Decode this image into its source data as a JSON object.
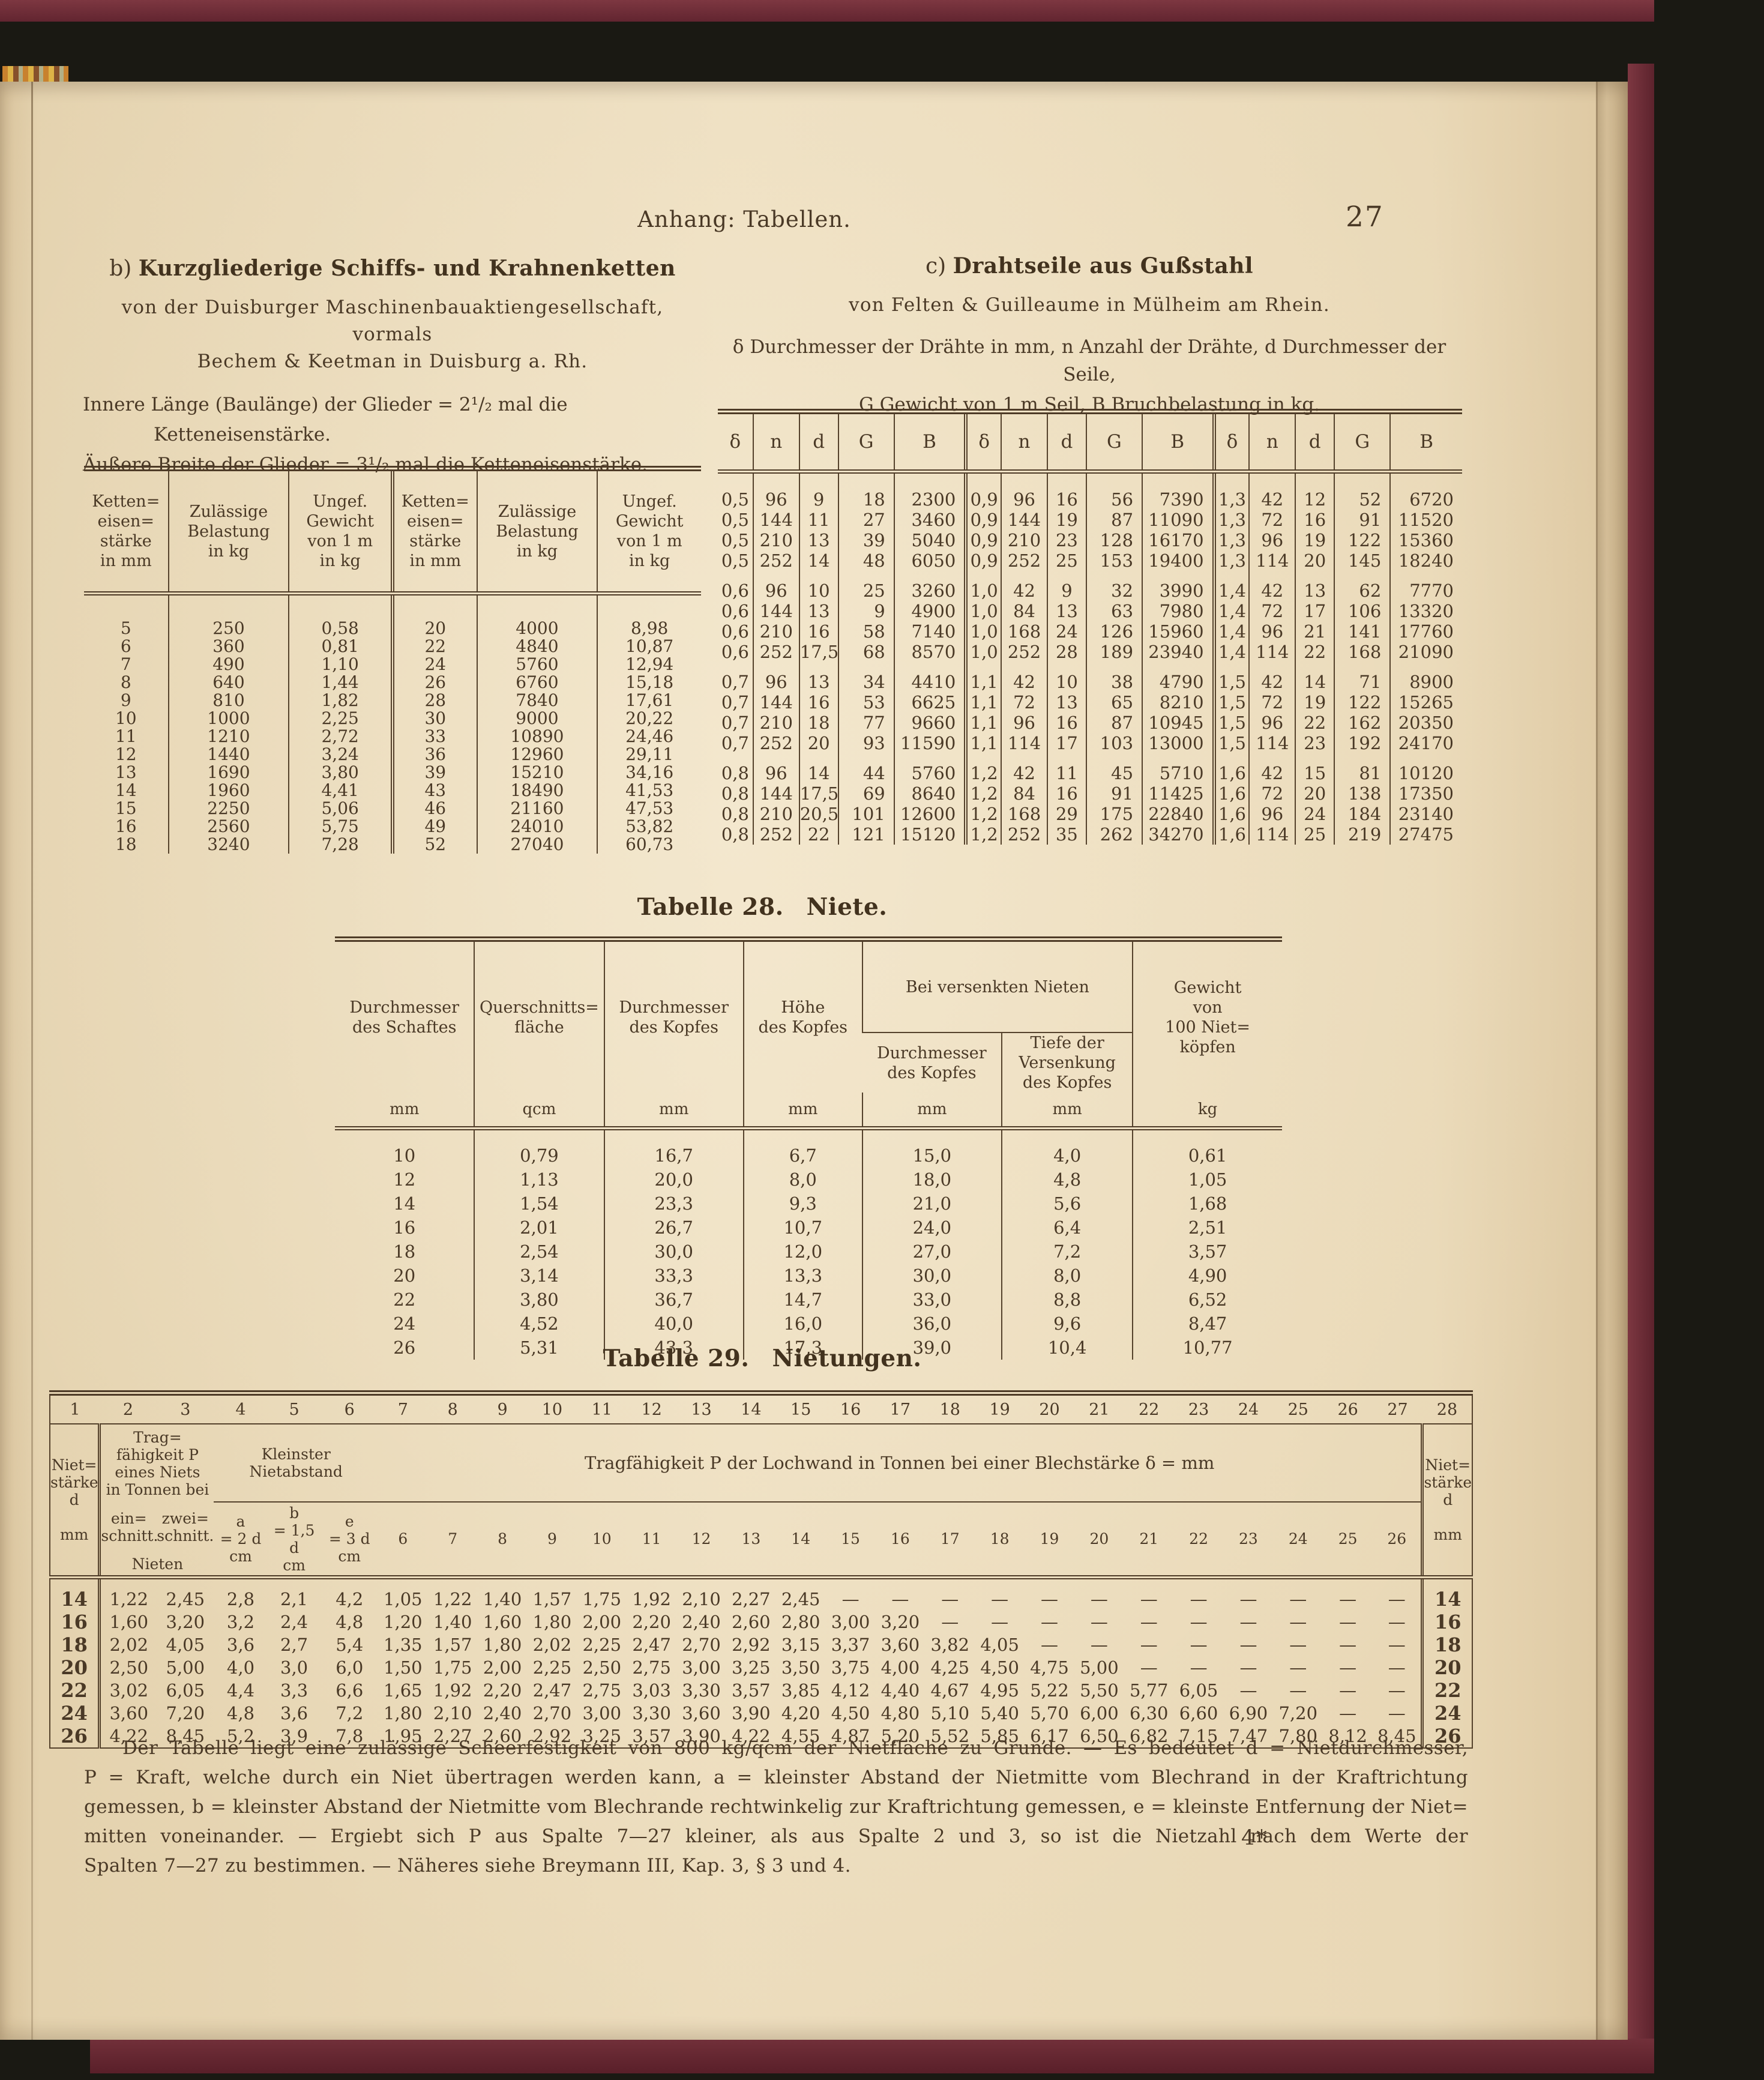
{
  "page": {
    "running_head": "Anhang: Tabellen.",
    "page_number": "27",
    "signature_mark": "4*"
  },
  "section_b": {
    "label": "b)",
    "title": "Kurzgliederige Schiffs- und Krahnenketten",
    "subtitle1": "von der Duisburger Maschinenbauaktiengesellschaft, vormals",
    "subtitle2": "Bechem & Keetman in Duisburg a. Rh.",
    "note1a": "Innere Länge (Baulänge) der Glieder = 2¹/₂ mal die",
    "note1b": "Ketteneisenstärke.",
    "note2": "Äußere Breite der Glieder = 3¹/₂ mal die Ketteneisenstärke.",
    "table": {
      "col_headers": {
        "strength": "Ketten=\neisen=\nstärke\nin mm",
        "load": "Zulässige\nBelastung\nin kg",
        "weight": "Ungef.\nGewicht\nvon 1 m\nin kg"
      },
      "rows": [
        [
          "5",
          "250",
          "0,58",
          "20",
          "4000",
          "8,98"
        ],
        [
          "6",
          "360",
          "0,81",
          "22",
          "4840",
          "10,87"
        ],
        [
          "7",
          "490",
          "1,10",
          "24",
          "5760",
          "12,94"
        ],
        [
          "8",
          "640",
          "1,44",
          "26",
          "6760",
          "15,18"
        ],
        [
          "9",
          "810",
          "1,82",
          "28",
          "7840",
          "17,61"
        ],
        [
          "10",
          "1000",
          "2,25",
          "30",
          "9000",
          "20,22"
        ],
        [
          "11",
          "1210",
          "2,72",
          "33",
          "10890",
          "24,46"
        ],
        [
          "12",
          "1440",
          "3,24",
          "36",
          "12960",
          "29,11"
        ],
        [
          "13",
          "1690",
          "3,80",
          "39",
          "15210",
          "34,16"
        ],
        [
          "14",
          "1960",
          "4,41",
          "43",
          "18490",
          "41,53"
        ],
        [
          "15",
          "2250",
          "5,06",
          "46",
          "21160",
          "47,53"
        ],
        [
          "16",
          "2560",
          "5,75",
          "49",
          "24010",
          "53,82"
        ],
        [
          "18",
          "3240",
          "7,28",
          "52",
          "27040",
          "60,73"
        ]
      ]
    }
  },
  "section_c": {
    "label": "c)",
    "title": "Drahtseile aus Gußstahl",
    "subtitle": "von Felten & Guilleaume in Mülheim am Rhein.",
    "note1": "δ Durchmesser der Drähte in mm, n Anzahl der Drähte, d Durchmesser der Seile,",
    "note2": "G Gewicht von 1 m Seil, B Bruchbelastung in kg.",
    "header_cells": [
      "δ",
      "n",
      "d",
      "G",
      "B",
      "δ",
      "n",
      "d",
      "G",
      "B",
      "δ",
      "n",
      "d",
      "G",
      "B"
    ],
    "rows": [
      [
        "0,5",
        "96",
        "9",
        "18",
        "2300",
        "0,9",
        "96",
        "16",
        "56",
        "7390",
        "1,3",
        "42",
        "12",
        "52",
        "6720"
      ],
      [
        "0,5",
        "144",
        "11",
        "27",
        "3460",
        "0,9",
        "144",
        "19",
        "87",
        "11090",
        "1,3",
        "72",
        "16",
        "91",
        "11520"
      ],
      [
        "0,5",
        "210",
        "13",
        "39",
        "5040",
        "0,9",
        "210",
        "23",
        "128",
        "16170",
        "1,3",
        "96",
        "19",
        "122",
        "15360"
      ],
      [
        "0,5",
        "252",
        "14",
        "48",
        "6050",
        "0,9",
        "252",
        "25",
        "153",
        "19400",
        "1,3",
        "114",
        "20",
        "145",
        "18240"
      ],
      [
        "0,6",
        "96",
        "10",
        "25",
        "3260",
        "1,0",
        "42",
        "9",
        "32",
        "3990",
        "1,4",
        "42",
        "13",
        "62",
        "7770"
      ],
      [
        "0,6",
        "144",
        "13",
        "9",
        "4900",
        "1,0",
        "84",
        "13",
        "63",
        "7980",
        "1,4",
        "72",
        "17",
        "106",
        "13320"
      ],
      [
        "0,6",
        "210",
        "16",
        "58",
        "7140",
        "1,0",
        "168",
        "24",
        "126",
        "15960",
        "1,4",
        "96",
        "21",
        "141",
        "17760"
      ],
      [
        "0,6",
        "252",
        "17,5",
        "68",
        "8570",
        "1,0",
        "252",
        "28",
        "189",
        "23940",
        "1,4",
        "114",
        "22",
        "168",
        "21090"
      ],
      [
        "0,7",
        "96",
        "13",
        "34",
        "4410",
        "1,1",
        "42",
        "10",
        "38",
        "4790",
        "1,5",
        "42",
        "14",
        "71",
        "8900"
      ],
      [
        "0,7",
        "144",
        "16",
        "53",
        "6625",
        "1,1",
        "72",
        "13",
        "65",
        "8210",
        "1,5",
        "72",
        "19",
        "122",
        "15265"
      ],
      [
        "0,7",
        "210",
        "18",
        "77",
        "9660",
        "1,1",
        "96",
        "16",
        "87",
        "10945",
        "1,5",
        "96",
        "22",
        "162",
        "20350"
      ],
      [
        "0,7",
        "252",
        "20",
        "93",
        "11590",
        "1,1",
        "114",
        "17",
        "103",
        "13000",
        "1,5",
        "114",
        "23",
        "192",
        "24170"
      ],
      [
        "0,8",
        "96",
        "14",
        "44",
        "5760",
        "1,2",
        "42",
        "11",
        "45",
        "5710",
        "1,6",
        "42",
        "15",
        "81",
        "10120"
      ],
      [
        "0,8",
        "144",
        "17,5",
        "69",
        "8640",
        "1,2",
        "84",
        "16",
        "91",
        "11425",
        "1,6",
        "72",
        "20",
        "138",
        "17350"
      ],
      [
        "0,8",
        "210",
        "20,5",
        "101",
        "12600",
        "1,2",
        "168",
        "29",
        "175",
        "22840",
        "1,6",
        "96",
        "24",
        "184",
        "23140"
      ],
      [
        "0,8",
        "252",
        "22",
        "121",
        "15120",
        "1,2",
        "252",
        "35",
        "262",
        "34270",
        "1,6",
        "114",
        "25",
        "219",
        "27475"
      ]
    ]
  },
  "table28": {
    "title_label": "Tabelle 28.",
    "title_name": "Niete.",
    "h1": "Durchmesser\ndes Schaftes",
    "h2": "Querschnitts=\nfläche",
    "h3": "Durchmesser\ndes Kopfes",
    "h4": "Höhe\ndes Kopfes",
    "group_label": "Bei versenkten Nieten",
    "h5": "Durchmesser\ndes Kopfes",
    "h6": "Tiefe der\nVersenkung\ndes Kopfes",
    "h7": "Gewicht\nvon\n100 Niet=\nköpfen",
    "units": [
      "mm",
      "qcm",
      "mm",
      "mm",
      "mm",
      "mm",
      "kg"
    ],
    "rows": [
      [
        "10",
        "0,79",
        "16,7",
        "6,7",
        "15,0",
        "4,0",
        "0,61"
      ],
      [
        "12",
        "1,13",
        "20,0",
        "8,0",
        "18,0",
        "4,8",
        "1,05"
      ],
      [
        "14",
        "1,54",
        "23,3",
        "9,3",
        "21,0",
        "5,6",
        "1,68"
      ],
      [
        "16",
        "2,01",
        "26,7",
        "10,7",
        "24,0",
        "6,4",
        "2,51"
      ],
      [
        "18",
        "2,54",
        "30,0",
        "12,0",
        "27,0",
        "7,2",
        "3,57"
      ],
      [
        "20",
        "3,14",
        "33,3",
        "13,3",
        "30,0",
        "8,0",
        "4,90"
      ],
      [
        "22",
        "3,80",
        "36,7",
        "14,7",
        "33,0",
        "8,8",
        "6,52"
      ],
      [
        "24",
        "4,52",
        "40,0",
        "16,0",
        "36,0",
        "9,6",
        "8,47"
      ],
      [
        "26",
        "5,31",
        "43,3",
        "17,3",
        "39,0",
        "10,4",
        "10,77"
      ]
    ]
  },
  "table29": {
    "title_label": "Tabelle 29.",
    "title_name": "Nietungen.",
    "col_numbers": [
      "1",
      "2",
      "3",
      "4",
      "5",
      "6",
      "7",
      "8",
      "9",
      "10",
      "11",
      "12",
      "13",
      "14",
      "15",
      "16",
      "17",
      "18",
      "19",
      "20",
      "21",
      "22",
      "23",
      "24",
      "25",
      "26",
      "27",
      "28"
    ],
    "head": {
      "niet_left": "Niet=\nstärke\nd\n \nmm",
      "trag_group": "Trag=\nfähigkeit P\neines Niets\nin Tonnen bei",
      "trag_sub1": "ein=\nschnitt.",
      "trag_sub2": "zwei=\nschnitt.",
      "trag_bottom": "Nieten",
      "abstand_group": "Kleinster\nNietabstand",
      "abstand_a": "a\n= 2 d\ncm",
      "abstand_b": "b\n= 1,5 d\ncm",
      "abstand_e": "e\n= 3 d\ncm",
      "lochwand_group": "Tragfähigkeit P der Lochwand in Tonnen bei einer Blechstärke δ = mm",
      "delta_cols": [
        "6",
        "7",
        "8",
        "9",
        "10",
        "11",
        "12",
        "13",
        "14",
        "15",
        "16",
        "17",
        "18",
        "19",
        "20",
        "21",
        "22",
        "23",
        "24",
        "25",
        "26"
      ],
      "niet_right": "Niet=\nstärke\nd\n \nmm"
    },
    "rows": [
      [
        "14",
        "1,22",
        "2,45",
        "2,8",
        "2,1",
        "4,2",
        "1,05",
        "1,22",
        "1,40",
        "1,57",
        "1,75",
        "1,92",
        "2,10",
        "2,27",
        "2,45",
        "—",
        "—",
        "—",
        "—",
        "—",
        "—",
        "—",
        "—",
        "—",
        "—",
        "—",
        "—",
        "14"
      ],
      [
        "16",
        "1,60",
        "3,20",
        "3,2",
        "2,4",
        "4,8",
        "1,20",
        "1,40",
        "1,60",
        "1,80",
        "2,00",
        "2,20",
        "2,40",
        "2,60",
        "2,80",
        "3,00",
        "3,20",
        "—",
        "—",
        "—",
        "—",
        "—",
        "—",
        "—",
        "—",
        "—",
        "—",
        "16"
      ],
      [
        "18",
        "2,02",
        "4,05",
        "3,6",
        "2,7",
        "5,4",
        "1,35",
        "1,57",
        "1,80",
        "2,02",
        "2,25",
        "2,47",
        "2,70",
        "2,92",
        "3,15",
        "3,37",
        "3,60",
        "3,82",
        "4,05",
        "—",
        "—",
        "—",
        "—",
        "—",
        "—",
        "—",
        "—",
        "18"
      ],
      [
        "20",
        "2,50",
        "5,00",
        "4,0",
        "3,0",
        "6,0",
        "1,50",
        "1,75",
        "2,00",
        "2,25",
        "2,50",
        "2,75",
        "3,00",
        "3,25",
        "3,50",
        "3,75",
        "4,00",
        "4,25",
        "4,50",
        "4,75",
        "5,00",
        "—",
        "—",
        "—",
        "—",
        "—",
        "—",
        "20"
      ],
      [
        "22",
        "3,02",
        "6,05",
        "4,4",
        "3,3",
        "6,6",
        "1,65",
        "1,92",
        "2,20",
        "2,47",
        "2,75",
        "3,03",
        "3,30",
        "3,57",
        "3,85",
        "4,12",
        "4,40",
        "4,67",
        "4,95",
        "5,22",
        "5,50",
        "5,77",
        "6,05",
        "—",
        "—",
        "—",
        "—",
        "22"
      ],
      [
        "24",
        "3,60",
        "7,20",
        "4,8",
        "3,6",
        "7,2",
        "1,80",
        "2,10",
        "2,40",
        "2,70",
        "3,00",
        "3,30",
        "3,60",
        "3,90",
        "4,20",
        "4,50",
        "4,80",
        "5,10",
        "5,40",
        "5,70",
        "6,00",
        "6,30",
        "6,60",
        "6,90",
        "7,20",
        "—",
        "—",
        "24"
      ],
      [
        "26",
        "4,22",
        "8,45",
        "5,2",
        "3,9",
        "7,8",
        "1,95",
        "2,27",
        "2,60",
        "2,92",
        "3,25",
        "3,57",
        "3,90",
        "4,22",
        "4,55",
        "4,87",
        "5,20",
        "5,52",
        "5,85",
        "6,17",
        "6,50",
        "6,82",
        "7,15",
        "7,47",
        "7,80",
        "8,12",
        "8,45",
        "26"
      ]
    ]
  },
  "footer": {
    "lines": [
      "Der Tabelle liegt eine zulässige Scheerfestigkeit von 800 kg/qcm der Nietfläche zu Grunde. — Es bedeutet d = Nietdurchmesser,",
      "P = Kraft, welche durch ein Niet übertragen werden kann, a = kleinster Abstand der Nietmitte vom Blechrand in der Kraftrichtung",
      "gemessen, b = kleinster Abstand der Nietmitte vom Blechrande rechtwinkelig zur Kraftrichtung gemessen, e = kleinste Entfernung der Niet=",
      "mitten voneinander. — Ergiebt sich P aus Spalte 7—27 kleiner, als aus Spalte 2 und 3, so ist die Nietzahl nach dem Werte der",
      "Spalten 7—27 zu bestimmen. — Näheres siehe Breymann III, Kap. 3, § 3 und 4."
    ]
  },
  "colors": {
    "background": "#1a1913",
    "cover": "#6e2e38",
    "page": "#e8d7b5",
    "ink": "#4a3926"
  }
}
